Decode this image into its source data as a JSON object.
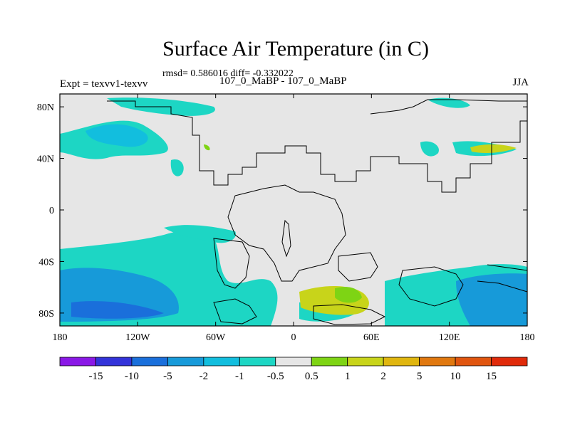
{
  "header": {
    "title": "Surface Air Temperature (in C)",
    "stats": "rmsd= 0.586016 diff= -0.332022",
    "experiment": "Expt = texvv1-texvv",
    "case": "107_0_MaBP - 107_0_MaBP",
    "season": "JJA"
  },
  "map": {
    "lon_ticks": [
      "180",
      "120W",
      "60W",
      "0",
      "60E",
      "120E",
      "180"
    ],
    "lat_ticks": [
      "80N",
      "40N",
      "0",
      "40S",
      "80S"
    ],
    "background_color": "#e6e6e6",
    "coast_color": "#000000"
  },
  "colorbar": {
    "colors": [
      "#8a18e6",
      "#3333d9",
      "#1a6fdb",
      "#179ad9",
      "#12bede",
      "#1dd6c4",
      "#e6e6e6",
      "#7ed414",
      "#c8d41a",
      "#e0b60f",
      "#e0780f",
      "#e0550f",
      "#e02a0a"
    ],
    "labels": [
      "-15",
      "-10",
      "-5",
      "-2",
      "-1",
      "-0.5",
      "0.5",
      "1",
      "2",
      "5",
      "10",
      "15"
    ]
  }
}
